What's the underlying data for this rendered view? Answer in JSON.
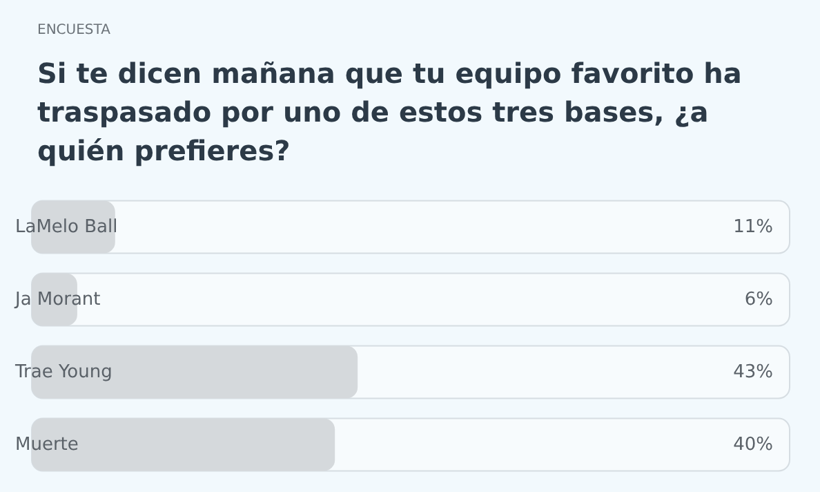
{
  "chart_data": {
    "type": "bar",
    "orientation": "horizontal",
    "subtitle": "ENCUESTA",
    "title": "Si te dicen mañana que tu equipo favorito ha traspasado por uno de estos tres bases, ¿a quién prefieres?",
    "categories": [
      "LaMelo Ball",
      "Ja Morant",
      "Trae Young",
      "Muerte"
    ],
    "values": [
      11,
      6,
      43,
      40
    ],
    "value_labels": [
      "11%",
      "6%",
      "43%",
      "40%"
    ],
    "color": "#d5d9dc",
    "xlim": [
      0,
      100
    ]
  }
}
